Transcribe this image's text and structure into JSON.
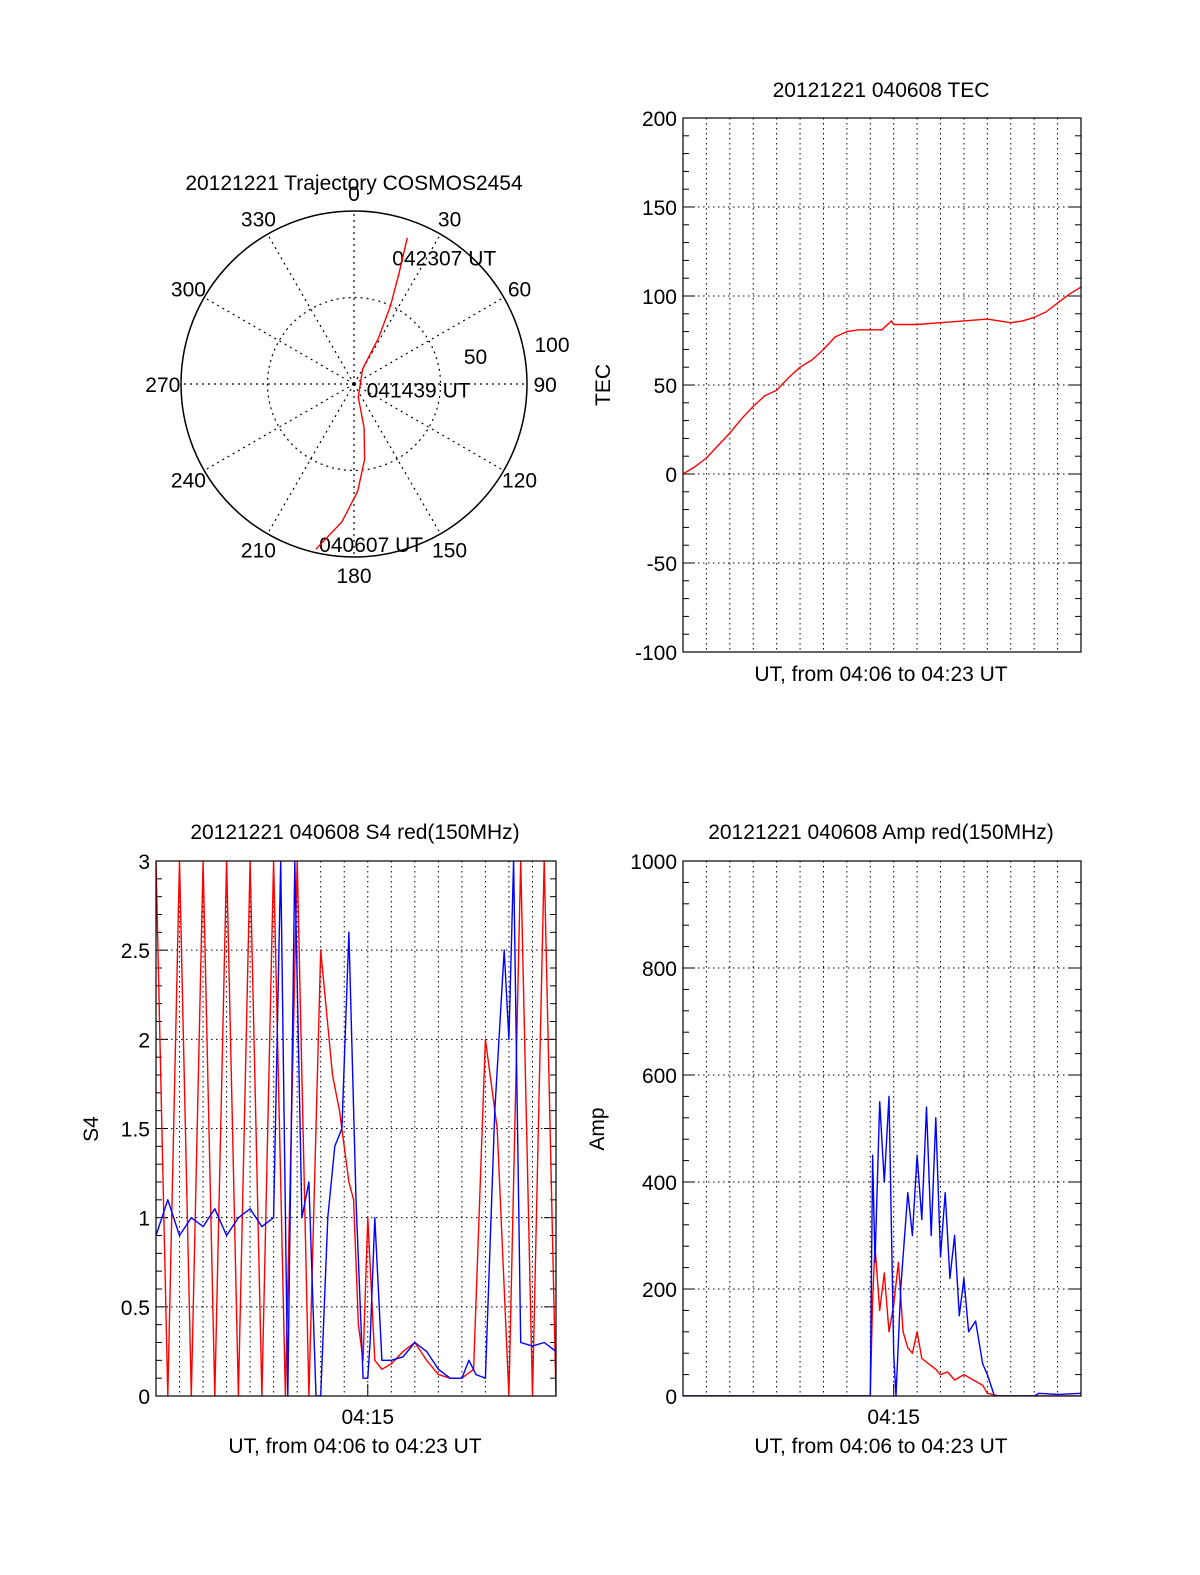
{
  "colors": {
    "red": "#ff0000",
    "blue": "#0000ff",
    "axis": "#000000",
    "grid": "#000000"
  },
  "chart_data": [
    {
      "id": "polar",
      "type": "polar-trajectory",
      "title": "20121221 Trajectory COSMOS2454",
      "azimuth_labels": [
        "0",
        "30",
        "60",
        "90",
        "120",
        "150",
        "180",
        "210",
        "240",
        "270",
        "300",
        "330"
      ],
      "radius_labels": [
        "50",
        "100"
      ],
      "r_max": 100,
      "track": [
        [
          193,
          98
        ],
        [
          185,
          80
        ],
        [
          178,
          62
        ],
        [
          172,
          44
        ],
        [
          167,
          26
        ],
        [
          162,
          8
        ],
        [
          30,
          10
        ],
        [
          28,
          30
        ],
        [
          25,
          50
        ],
        [
          22,
          70
        ],
        [
          20,
          90
        ]
      ],
      "annotations": [
        {
          "text": "040607 UT",
          "az": 186,
          "r": 93
        },
        {
          "text": "041439 UT",
          "az": 100,
          "r": 18
        },
        {
          "text": "042307 UT",
          "az": 24,
          "r": 80
        }
      ]
    },
    {
      "id": "tec",
      "type": "line",
      "title": "20121221 040608 TEC",
      "xlabel": "UT, from 04:06 to 04:23 UT",
      "ylabel": "TEC",
      "xlim": [
        0,
        17
      ],
      "ylim": [
        -100,
        200
      ],
      "yticks": [
        -100,
        -50,
        0,
        50,
        100,
        150,
        200
      ],
      "xticks": [],
      "grid": true,
      "series": [
        {
          "color": "red",
          "x": [
            0,
            0.5,
            1.0,
            1.5,
            2.0,
            2.5,
            3.0,
            3.5,
            4.0,
            4.5,
            5.0,
            5.5,
            6.0,
            6.5,
            7.0,
            7.5,
            8.0,
            8.5,
            8.9,
            9.0,
            9.5,
            10.0,
            11.0,
            12.0,
            13.0,
            13.5,
            14.0,
            14.5,
            15.0,
            15.5,
            16.0,
            16.5,
            17.0
          ],
          "y": [
            0,
            4,
            9,
            16,
            23,
            31,
            38,
            44,
            47,
            54,
            60,
            64,
            70,
            77,
            80,
            81,
            81,
            81,
            86,
            84,
            84,
            84,
            85,
            86,
            87,
            86,
            85,
            86,
            88,
            91,
            96,
            101,
            105
          ]
        }
      ]
    },
    {
      "id": "s4",
      "type": "line",
      "title": "20121221 040608 S4 red(150MHz)",
      "xlabel": "UT, from 04:06 to 04:23 UT",
      "ylabel": "S4",
      "xlim": [
        0,
        17
      ],
      "ylim": [
        0,
        3
      ],
      "yticks": [
        0,
        0.5,
        1,
        1.5,
        2,
        2.5,
        3
      ],
      "yticklabels": [
        "0",
        "0.5",
        "1",
        "1.5",
        "2",
        "2.5",
        "3"
      ],
      "xticks": [
        {
          "x": 9,
          "label": "04:15"
        }
      ],
      "grid": true,
      "series": [
        {
          "color": "red",
          "x": [
            0,
            0.5,
            1.0,
            1.5,
            2.0,
            2.5,
            3.0,
            3.5,
            4.0,
            4.5,
            5.0,
            5.5,
            6.0,
            6.5,
            7.0,
            7.5,
            7.8,
            8.0,
            8.2,
            8.4,
            8.6,
            8.8,
            9.0,
            9.3,
            9.6,
            10.0,
            10.5,
            11.0,
            11.5,
            12.0,
            12.5,
            13.0,
            13.5,
            14.0,
            14.5,
            15.0,
            15.5,
            16.0,
            16.5,
            17.0
          ],
          "y": [
            3.0,
            0.0,
            3.0,
            0.0,
            3.0,
            0.0,
            3.0,
            0.0,
            3.0,
            0.0,
            3.0,
            0.0,
            3.0,
            0.0,
            2.5,
            1.8,
            1.6,
            1.4,
            1.2,
            1.1,
            0.4,
            0.2,
            1.0,
            0.2,
            0.15,
            0.18,
            0.25,
            0.3,
            0.2,
            0.12,
            0.1,
            0.1,
            0.15,
            2.0,
            1.5,
            0.0,
            3.0,
            0.0,
            3.0,
            0.0
          ]
        },
        {
          "color": "blue",
          "x": [
            0,
            0.5,
            1.0,
            1.5,
            2.0,
            2.5,
            3.0,
            3.5,
            4.0,
            4.5,
            5.0,
            5.3,
            5.6,
            5.9,
            6.2,
            6.5,
            6.8,
            7.0,
            7.3,
            7.6,
            7.9,
            8.2,
            8.5,
            8.8,
            9.0,
            9.1,
            9.3,
            9.6,
            10.0,
            10.5,
            11.0,
            11.5,
            12.0,
            12.5,
            13.0,
            13.3,
            13.6,
            14.0,
            14.4,
            14.8,
            15.0,
            15.2,
            15.5,
            16.0,
            16.5,
            17.0
          ],
          "y": [
            0.9,
            1.1,
            0.9,
            1.0,
            0.95,
            1.05,
            0.9,
            1.0,
            1.05,
            0.95,
            1.0,
            3.0,
            0.0,
            3.0,
            1.0,
            1.2,
            0.0,
            0.0,
            1.0,
            1.4,
            1.5,
            2.6,
            1.1,
            0.1,
            0.1,
            0.3,
            1.0,
            0.2,
            0.2,
            0.22,
            0.3,
            0.25,
            0.15,
            0.1,
            0.1,
            0.2,
            0.12,
            0.1,
            1.6,
            2.5,
            2.0,
            3.0,
            0.3,
            0.28,
            0.3,
            0.25
          ]
        }
      ]
    },
    {
      "id": "amp",
      "type": "line",
      "title": "20121221 040608 Amp red(150MHz)",
      "xlabel": "UT, from 04:06 to 04:23 UT",
      "ylabel": "Amp",
      "xlim": [
        0,
        17
      ],
      "ylim": [
        0,
        1000
      ],
      "yticks": [
        0,
        200,
        400,
        600,
        800,
        1000
      ],
      "xticks": [
        {
          "x": 9,
          "label": "04:15"
        }
      ],
      "grid": true,
      "series": [
        {
          "color": "red",
          "x": [
            0,
            7.5,
            8.0,
            8.1,
            8.2,
            8.4,
            8.6,
            8.8,
            9.0,
            9.2,
            9.4,
            9.6,
            9.8,
            10.0,
            10.2,
            10.5,
            10.8,
            11.0,
            11.3,
            11.6,
            12.0,
            12.4,
            12.8,
            13.0,
            13.5,
            14.0,
            17.0
          ],
          "y": [
            0,
            0,
            0,
            180,
            280,
            160,
            230,
            120,
            170,
            250,
            120,
            90,
            80,
            120,
            70,
            60,
            50,
            40,
            45,
            30,
            40,
            30,
            20,
            5,
            0,
            0,
            0
          ]
        },
        {
          "color": "blue",
          "x": [
            0,
            7.5,
            8.0,
            8.1,
            8.2,
            8.4,
            8.6,
            8.8,
            9.0,
            9.1,
            9.3,
            9.6,
            9.8,
            10.0,
            10.2,
            10.4,
            10.6,
            10.8,
            11.0,
            11.2,
            11.4,
            11.6,
            11.8,
            12.0,
            12.2,
            12.5,
            12.8,
            13.0,
            13.3,
            14.0,
            15.0,
            15.2,
            16.0,
            17.0
          ],
          "y": [
            0,
            0,
            0,
            450,
            250,
            550,
            400,
            560,
            80,
            0,
            200,
            380,
            300,
            450,
            330,
            540,
            300,
            520,
            260,
            380,
            220,
            300,
            150,
            220,
            120,
            140,
            60,
            40,
            0,
            0,
            0,
            5,
            3,
            5
          ]
        }
      ]
    }
  ]
}
